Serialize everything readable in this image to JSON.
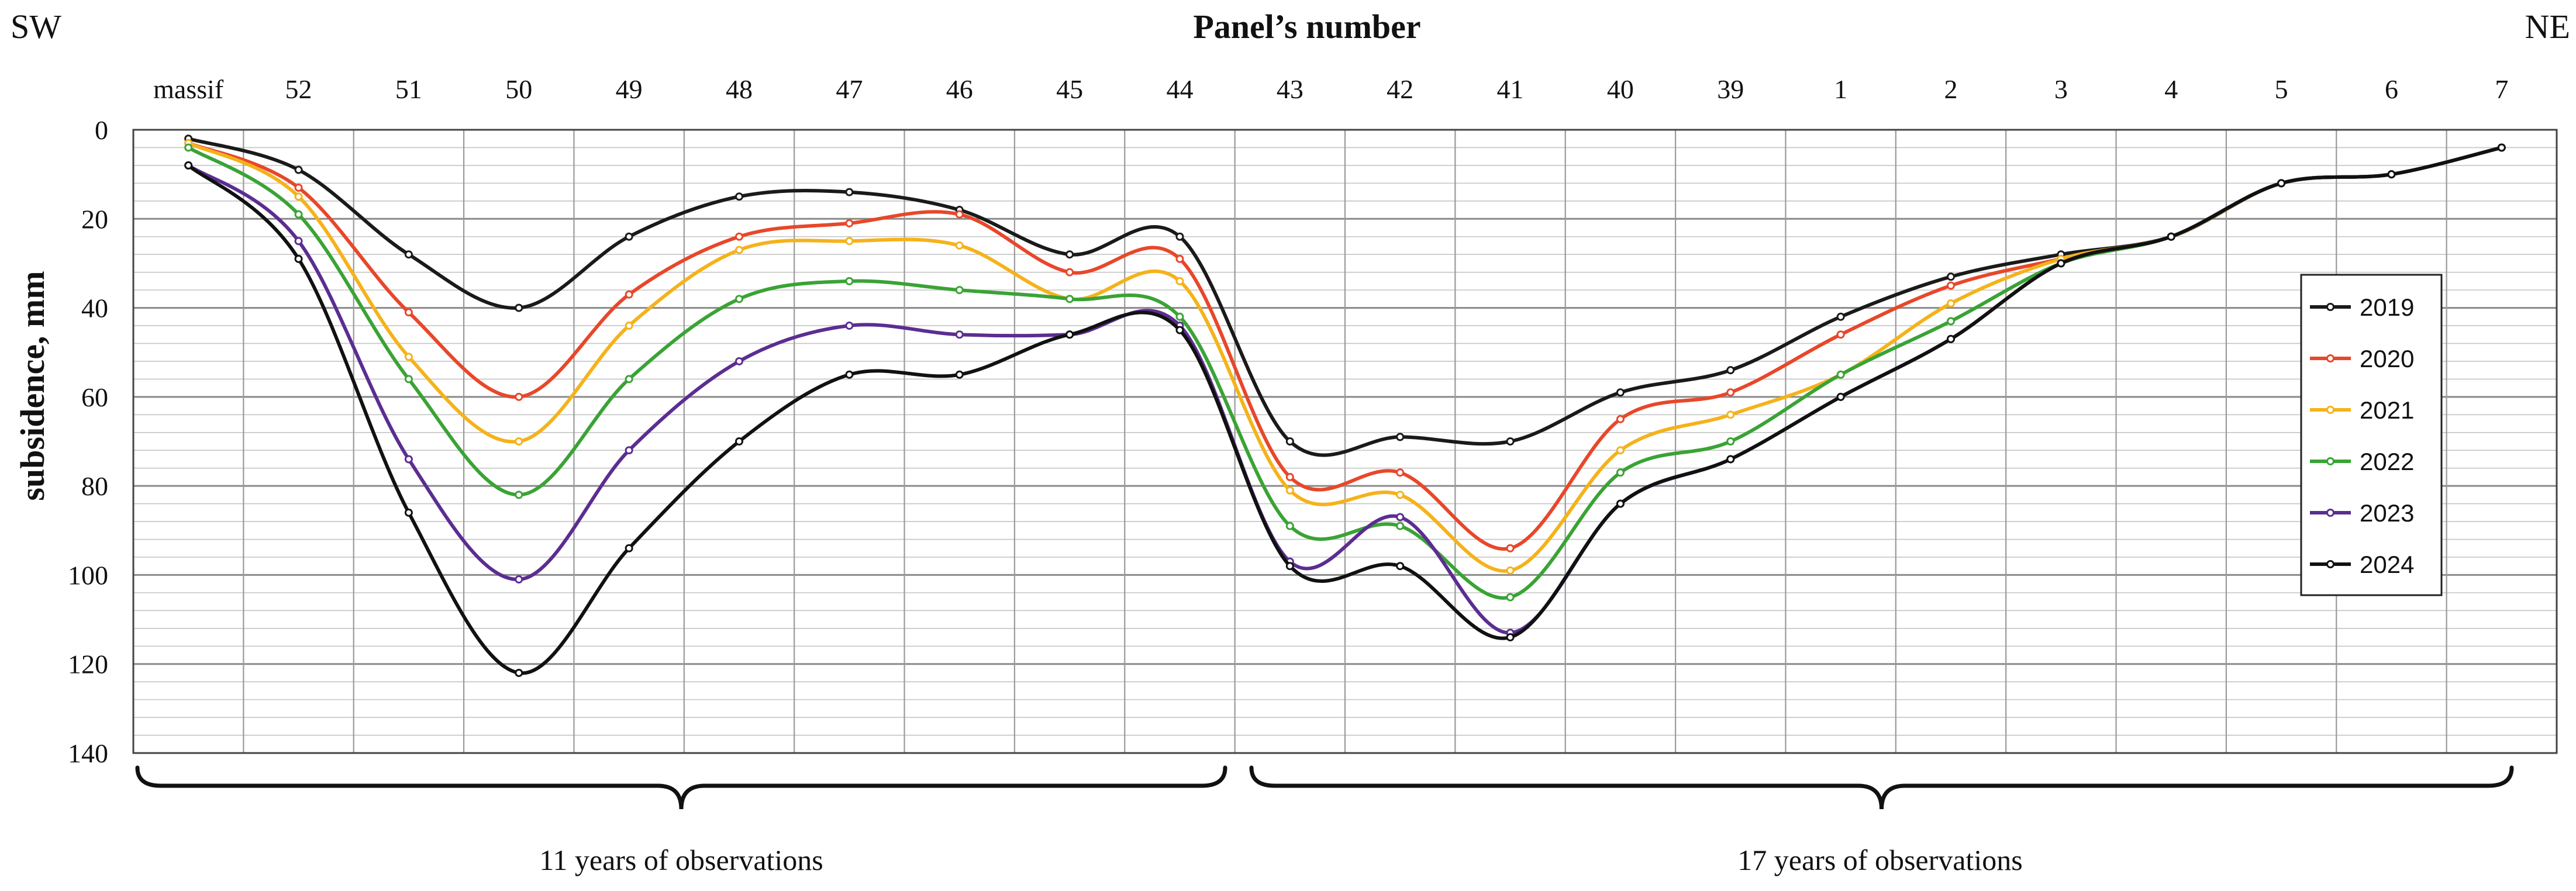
{
  "chart_data": {
    "type": "line",
    "title": "Panel’s number",
    "ylabel": "subsidence, mm",
    "direction_left": "SW",
    "direction_right": "NE",
    "categories": [
      "massif",
      "52",
      "51",
      "50",
      "49",
      "48",
      "47",
      "46",
      "45",
      "44",
      "43",
      "42",
      "41",
      "40",
      "39",
      "1",
      "2",
      "3",
      "4",
      "5",
      "6",
      "7"
    ],
    "yticks": [
      "0",
      "20",
      "40",
      "60",
      "80",
      "100",
      "120",
      "140"
    ],
    "ylim": [
      0,
      140
    ],
    "y_inverted": true,
    "grid": true,
    "legend_position": "right",
    "series": [
      {
        "name": "2019",
        "color": "#1a1a1a",
        "values": [
          2,
          9,
          28,
          40,
          24,
          15,
          14,
          18,
          28,
          24,
          70,
          69,
          70,
          59,
          54,
          42,
          33,
          28,
          24,
          12,
          10,
          4
        ]
      },
      {
        "name": "2020",
        "color": "#e8472a",
        "values": [
          3,
          13,
          41,
          60,
          37,
          24,
          21,
          19,
          32,
          29,
          78,
          77,
          94,
          65,
          59,
          46,
          35,
          29,
          24,
          12,
          10,
          4
        ]
      },
      {
        "name": "2021",
        "color": "#f5b21a",
        "values": [
          3,
          15,
          51,
          70,
          44,
          27,
          25,
          26,
          38,
          34,
          81,
          82,
          99,
          72,
          64,
          55,
          39,
          29,
          24,
          12,
          10,
          4
        ]
      },
      {
        "name": "2022",
        "color": "#3aa335",
        "values": [
          4,
          19,
          56,
          82,
          56,
          38,
          34,
          36,
          38,
          42,
          89,
          89,
          105,
          77,
          70,
          55,
          43,
          30,
          24,
          12,
          10,
          4
        ]
      },
      {
        "name": "2023",
        "color": "#5b2d91",
        "values": [
          8,
          25,
          74,
          101,
          72,
          52,
          44,
          46,
          46,
          44,
          97,
          87,
          113,
          84,
          74,
          60,
          47,
          30,
          24,
          12,
          10,
          4
        ]
      },
      {
        "name": "2024",
        "color": "#111111",
        "values": [
          8,
          29,
          86,
          122,
          94,
          70,
          55,
          55,
          46,
          45,
          98,
          98,
          114,
          84,
          74,
          60,
          47,
          30,
          24,
          12,
          10,
          4
        ]
      }
    ],
    "annotations": [
      "11 years of observations",
      "17 years of observations"
    ]
  }
}
